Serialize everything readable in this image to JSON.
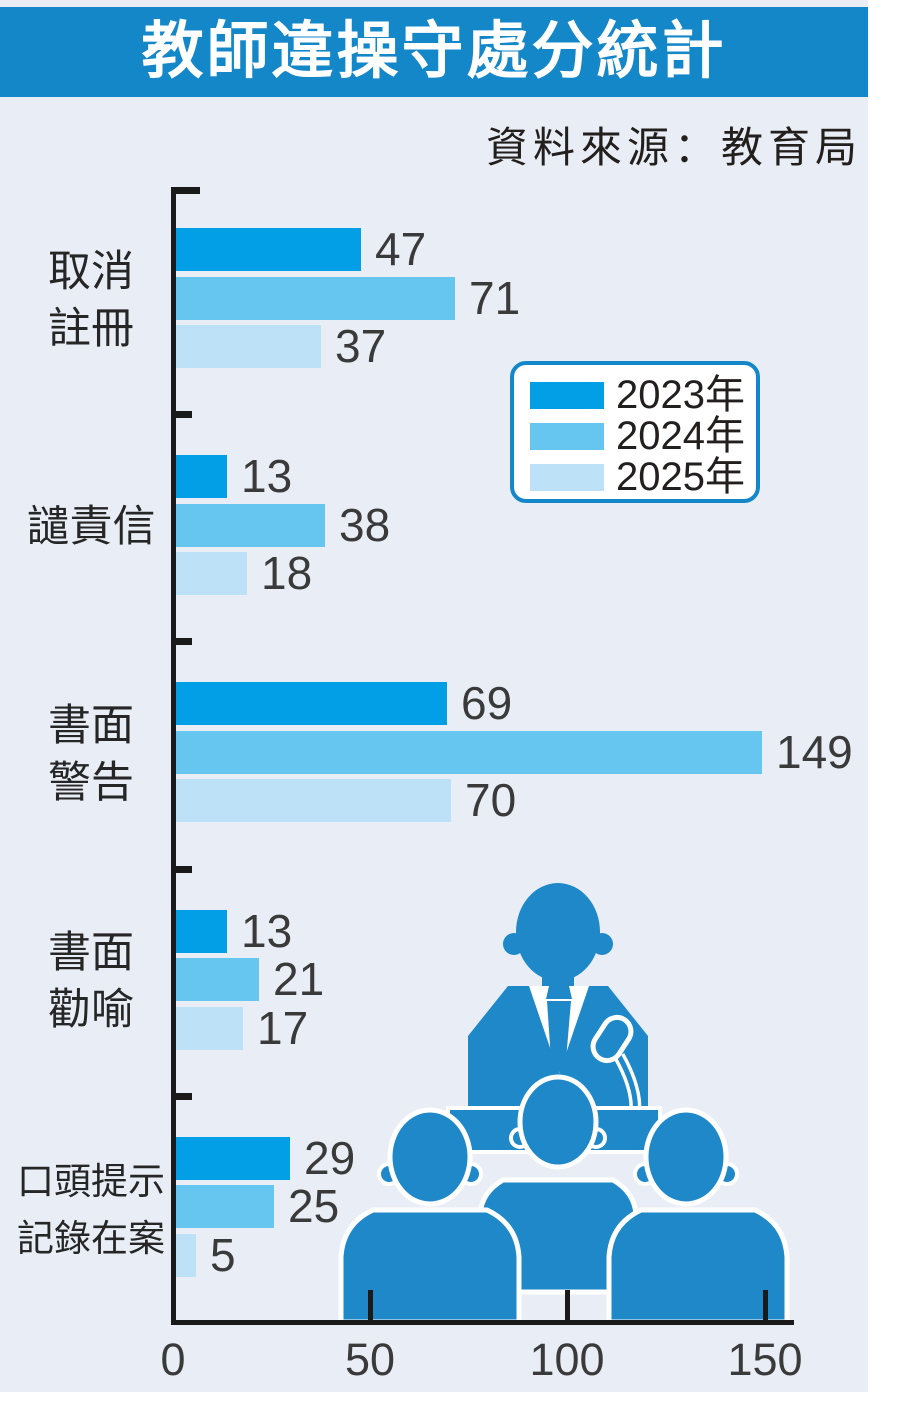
{
  "title": "教師違操守處分統計",
  "source": "資料來源：教育局",
  "colors": {
    "banner": "#1487C8",
    "panel_bg": "#E9EEF6",
    "axis": "#1A1A1A",
    "category_text": "#262626",
    "value_text": "#3A3A3A",
    "legend_border": "#1487C8",
    "illustration_blue": "#1E88C9"
  },
  "legend": {
    "items": [
      {
        "label": "2023年",
        "color": "#029FE6"
      },
      {
        "label": "2024年",
        "color": "#66C6EF"
      },
      {
        "label": "2025年",
        "color": "#BDE1F6"
      }
    ]
  },
  "chart_data": {
    "type": "bar",
    "orientation": "horizontal",
    "title": "教師違操守處分統計",
    "source": "資料來源：教育局",
    "categories": [
      "取消註冊",
      "譴責信",
      "書面警告",
      "書面勸喻",
      "口頭提示記錄在案"
    ],
    "category_label_lines": [
      [
        "取消",
        "註冊"
      ],
      [
        "譴責信"
      ],
      [
        "書面",
        "警告"
      ],
      [
        "書面",
        "勸喻"
      ],
      [
        "口頭提示",
        "記錄在案"
      ]
    ],
    "series": [
      {
        "name": "2023年",
        "color": "#029FE6",
        "values": [
          47,
          13,
          69,
          13,
          29
        ]
      },
      {
        "name": "2024年",
        "color": "#66C6EF",
        "values": [
          71,
          38,
          149,
          21,
          25
        ]
      },
      {
        "name": "2025年",
        "color": "#BDE1F6",
        "values": [
          37,
          18,
          70,
          17,
          5
        ]
      }
    ],
    "x_ticks": [
      0,
      50,
      100,
      150
    ],
    "xlim": [
      0,
      157
    ],
    "grid": false,
    "legend_position": "inside-upper-right"
  },
  "illustration": {
    "name": "speaker-at-podium-with-audience"
  }
}
